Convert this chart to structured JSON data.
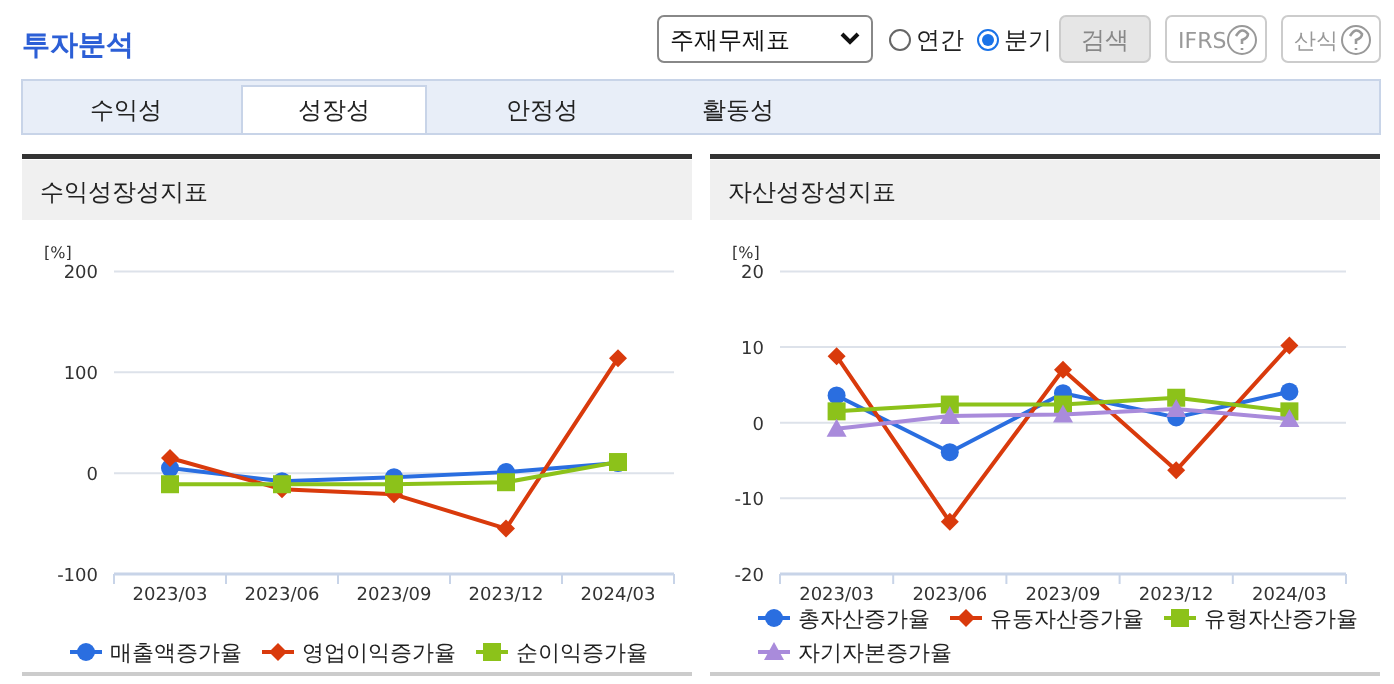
{
  "chart_data": [
    {
      "type": "other",
      "title": "투자분석",
      "annotations": [
        "주재무제표",
        "연간",
        "분기",
        "검색",
        "IFRS",
        "산식",
        "수익성",
        "성장성",
        "안정성",
        "활동성"
      ]
    },
    {
      "type": "line",
      "title": "수익성장성지표",
      "ylabel": "[%]",
      "categories": [
        "2023/03",
        "2023/06",
        "2023/09",
        "2023/12",
        "2024/03"
      ],
      "ylim": [
        -100,
        200
      ],
      "yticks": [
        -100,
        0,
        100,
        200
      ],
      "grid": "y",
      "legend": "bottom",
      "line_style": "solid",
      "series": [
        {
          "name": "매출액증가율",
          "color": "#2a6ee0",
          "marker": "circle",
          "values": [
            5,
            -8,
            -4,
            1,
            10
          ]
        },
        {
          "name": "영업이익증가율",
          "color": "#d93a0c",
          "marker": "diamond",
          "values": [
            15,
            -16,
            -21,
            -55,
            114
          ]
        },
        {
          "name": "순이익증가율",
          "color": "#8cc21a",
          "marker": "square",
          "values": [
            -11,
            -11,
            -11,
            -9,
            11
          ]
        }
      ]
    },
    {
      "type": "line",
      "title": "자산성장성지표",
      "ylabel": "[%]",
      "categories": [
        "2023/03",
        "2023/06",
        "2023/09",
        "2023/12",
        "2024/03"
      ],
      "ylim": [
        -20,
        20
      ],
      "yticks": [
        -20,
        -10,
        0,
        10,
        20
      ],
      "grid": "y",
      "legend": "bottom",
      "line_style": "solid",
      "series": [
        {
          "name": "총자산증가율",
          "color": "#2a6ee0",
          "marker": "circle",
          "values": [
            3.6,
            -3.9,
            3.9,
            0.7,
            4.1
          ]
        },
        {
          "name": "유동자산증가율",
          "color": "#d93a0c",
          "marker": "diamond",
          "values": [
            8.8,
            -13.1,
            7.0,
            -6.3,
            10.2
          ]
        },
        {
          "name": "유형자산증가율",
          "color": "#8cc21a",
          "marker": "square",
          "values": [
            1.5,
            2.4,
            2.4,
            3.3,
            1.5
          ]
        },
        {
          "name": "자기자본증가율",
          "color": "#a98bdb",
          "marker": "triangle",
          "values": [
            -0.8,
            0.9,
            1.1,
            1.8,
            0.5
          ]
        }
      ]
    }
  ]
}
